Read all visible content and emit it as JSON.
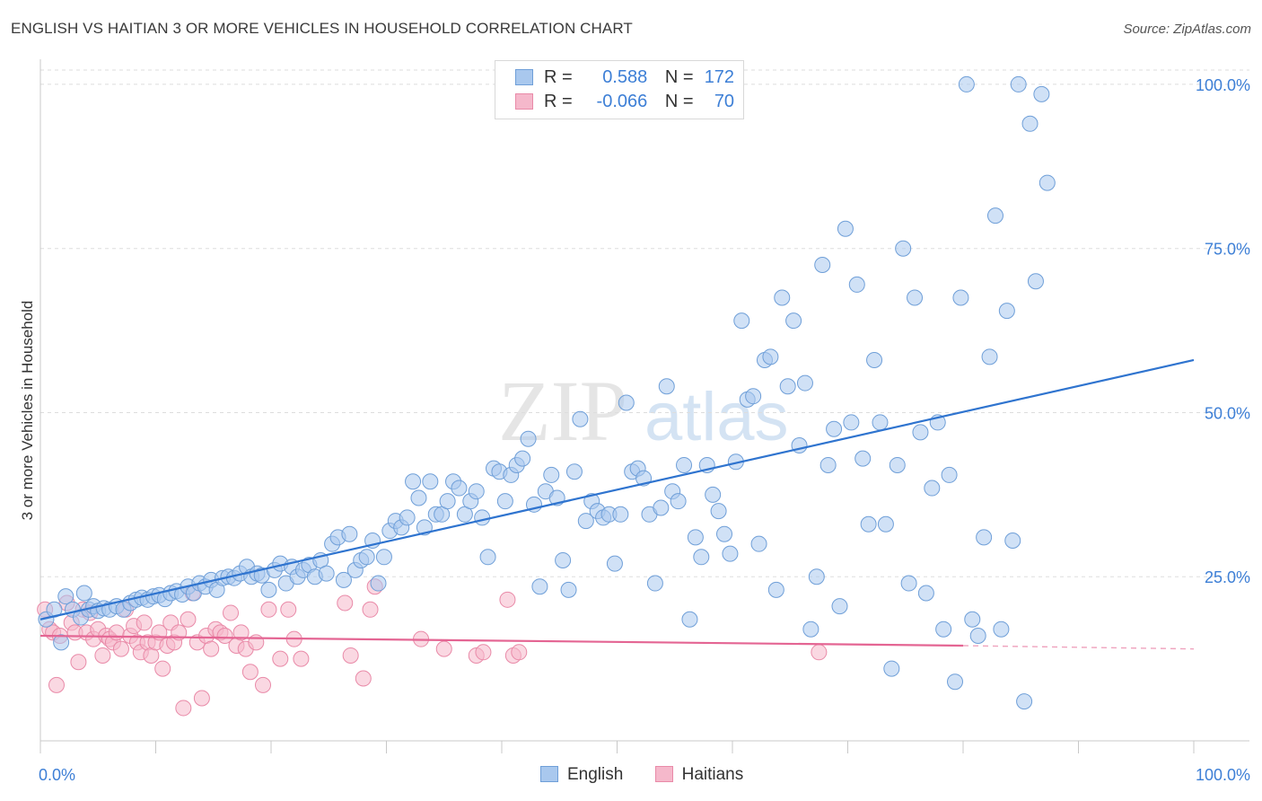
{
  "header": {
    "title": "ENGLISH VS HAITIAN 3 OR MORE VEHICLES IN HOUSEHOLD CORRELATION CHART",
    "source": "Source: ZipAtlas.com"
  },
  "colors": {
    "english_fill": "#a9c8ee",
    "english_stroke": "#6f9fd8",
    "english_line": "#2f74cf",
    "haitian_fill": "#f5b8cb",
    "haitian_stroke": "#e98aa8",
    "haitian_line": "#e46593",
    "axis_label": "#3d7fd6"
  },
  "legend": {
    "r_label": "R =",
    "n_label": "N =",
    "english_r": "0.588",
    "english_n": "172",
    "haitian_r": "-0.066",
    "haitian_n": "70"
  },
  "watermark": {
    "zip": "ZIP",
    "atlas": "atlas"
  },
  "chart_data": {
    "type": "scatter",
    "title": "ENGLISH VS HAITIAN 3 OR MORE VEHICLES IN HOUSEHOLD CORRELATION CHART",
    "xlabel": "",
    "ylabel": "3 or more Vehicles in Household",
    "xlim": [
      0,
      100
    ],
    "ylim": [
      0,
      103
    ],
    "x_tick_labels": [
      "0.0%",
      "100.0%"
    ],
    "y_ticks": [
      25,
      50,
      75,
      100
    ],
    "y_tick_labels": [
      "25.0%",
      "50.0%",
      "75.0%",
      "100.0%"
    ],
    "grid": true,
    "series": [
      {
        "name": "English",
        "r": 0.588,
        "n": 172,
        "trend": {
          "x": [
            0,
            100
          ],
          "y": [
            18.5,
            58
          ]
        },
        "points": [
          [
            0.5,
            18.5
          ],
          [
            1.2,
            20
          ],
          [
            1.8,
            15
          ],
          [
            2.2,
            22
          ],
          [
            2.8,
            20
          ],
          [
            3.5,
            18.8
          ],
          [
            3.8,
            22.5
          ],
          [
            4.2,
            20
          ],
          [
            4.6,
            20.5
          ],
          [
            5,
            19.8
          ],
          [
            5.5,
            20.2
          ],
          [
            6,
            20
          ],
          [
            6.6,
            20.5
          ],
          [
            7.2,
            20
          ],
          [
            7.8,
            21
          ],
          [
            8.3,
            21.5
          ],
          [
            8.8,
            21.8
          ],
          [
            9.3,
            21.5
          ],
          [
            9.8,
            22
          ],
          [
            10.3,
            22.2
          ],
          [
            10.8,
            21.6
          ],
          [
            11.3,
            22.5
          ],
          [
            11.8,
            22.8
          ],
          [
            12.3,
            22.3
          ],
          [
            12.8,
            23.5
          ],
          [
            13.3,
            22.5
          ],
          [
            13.8,
            24
          ],
          [
            14.3,
            23.5
          ],
          [
            14.8,
            24.5
          ],
          [
            15.3,
            23
          ],
          [
            15.8,
            24.8
          ],
          [
            16.3,
            25
          ],
          [
            16.8,
            24.8
          ],
          [
            17.3,
            25.5
          ],
          [
            17.9,
            26.5
          ],
          [
            18.3,
            25
          ],
          [
            18.8,
            25.5
          ],
          [
            19.2,
            25.2
          ],
          [
            19.8,
            23
          ],
          [
            20.3,
            26
          ],
          [
            20.8,
            27
          ],
          [
            21.3,
            24
          ],
          [
            21.8,
            26.5
          ],
          [
            22.3,
            25
          ],
          [
            22.8,
            26
          ],
          [
            23.3,
            26.8
          ],
          [
            23.8,
            25
          ],
          [
            24.3,
            27.5
          ],
          [
            24.8,
            25.5
          ],
          [
            25.3,
            30
          ],
          [
            25.8,
            31
          ],
          [
            26.3,
            24.5
          ],
          [
            26.8,
            31.5
          ],
          [
            27.3,
            26
          ],
          [
            27.8,
            27.5
          ],
          [
            28.3,
            28
          ],
          [
            28.8,
            30.5
          ],
          [
            29.3,
            24
          ],
          [
            29.8,
            28
          ],
          [
            30.3,
            32
          ],
          [
            30.8,
            33.5
          ],
          [
            31.3,
            32.5
          ],
          [
            31.8,
            34
          ],
          [
            32.3,
            39.5
          ],
          [
            32.8,
            37
          ],
          [
            33.3,
            32.5
          ],
          [
            33.8,
            39.5
          ],
          [
            34.3,
            34.5
          ],
          [
            34.8,
            34.5
          ],
          [
            35.3,
            36.5
          ],
          [
            35.8,
            39.5
          ],
          [
            36.3,
            38.5
          ],
          [
            36.8,
            34.5
          ],
          [
            37.3,
            36.5
          ],
          [
            37.8,
            38
          ],
          [
            38.3,
            34
          ],
          [
            38.8,
            28
          ],
          [
            39.3,
            41.5
          ],
          [
            39.8,
            41
          ],
          [
            40.3,
            36.5
          ],
          [
            40.8,
            40.5
          ],
          [
            41.3,
            42
          ],
          [
            41.8,
            43
          ],
          [
            42.3,
            46
          ],
          [
            42.8,
            36
          ],
          [
            43.3,
            23.5
          ],
          [
            43.8,
            38
          ],
          [
            44.3,
            40.5
          ],
          [
            44.8,
            37
          ],
          [
            45.3,
            27.5
          ],
          [
            45.8,
            23
          ],
          [
            46.3,
            41
          ],
          [
            46.8,
            49
          ],
          [
            47.3,
            33.5
          ],
          [
            47.8,
            36.5
          ],
          [
            48.3,
            35
          ],
          [
            48.8,
            34
          ],
          [
            49.3,
            34.5
          ],
          [
            49.8,
            27
          ],
          [
            50.3,
            34.5
          ],
          [
            50.8,
            51.5
          ],
          [
            51.3,
            41
          ],
          [
            51.8,
            41.5
          ],
          [
            52.3,
            40
          ],
          [
            52.8,
            34.5
          ],
          [
            53.3,
            24
          ],
          [
            53.8,
            35.5
          ],
          [
            54.3,
            54
          ],
          [
            54.8,
            38
          ],
          [
            55.3,
            36.5
          ],
          [
            55.8,
            42
          ],
          [
            56.3,
            18.5
          ],
          [
            56.8,
            31
          ],
          [
            57.3,
            28
          ],
          [
            57.8,
            42
          ],
          [
            58.3,
            37.5
          ],
          [
            58.8,
            35
          ],
          [
            59.3,
            31.5
          ],
          [
            59.8,
            28.5
          ],
          [
            60.3,
            42.5
          ],
          [
            60.8,
            64
          ],
          [
            61.3,
            52
          ],
          [
            61.8,
            52.5
          ],
          [
            62.3,
            30
          ],
          [
            62.8,
            58
          ],
          [
            63.3,
            58.5
          ],
          [
            63.8,
            23
          ],
          [
            64.3,
            67.5
          ],
          [
            64.8,
            54
          ],
          [
            65.3,
            64
          ],
          [
            65.8,
            45
          ],
          [
            66.3,
            54.5
          ],
          [
            66.8,
            17
          ],
          [
            67.3,
            25
          ],
          [
            67.8,
            72.5
          ],
          [
            68.3,
            42
          ],
          [
            68.8,
            47.5
          ],
          [
            69.3,
            20.5
          ],
          [
            69.8,
            78
          ],
          [
            70.3,
            48.5
          ],
          [
            70.8,
            69.5
          ],
          [
            71.3,
            43
          ],
          [
            71.8,
            33
          ],
          [
            72.3,
            58
          ],
          [
            72.8,
            48.5
          ],
          [
            73.3,
            33
          ],
          [
            73.8,
            11
          ],
          [
            74.3,
            42
          ],
          [
            74.8,
            75
          ],
          [
            75.3,
            24
          ],
          [
            75.8,
            67.5
          ],
          [
            76.3,
            47
          ],
          [
            76.8,
            22.5
          ],
          [
            77.3,
            38.5
          ],
          [
            77.8,
            48.5
          ],
          [
            78.3,
            17
          ],
          [
            78.8,
            40.5
          ],
          [
            79.3,
            9
          ],
          [
            79.8,
            67.5
          ],
          [
            80.3,
            100
          ],
          [
            80.8,
            18.5
          ],
          [
            81.3,
            16
          ],
          [
            81.8,
            31
          ],
          [
            82.3,
            58.5
          ],
          [
            82.8,
            80
          ],
          [
            83.3,
            17
          ],
          [
            83.8,
            65.5
          ],
          [
            84.3,
            30.5
          ],
          [
            84.8,
            100
          ],
          [
            85.3,
            6
          ],
          [
            85.8,
            94
          ],
          [
            86.3,
            70
          ],
          [
            86.8,
            98.5
          ],
          [
            87.3,
            85
          ]
        ]
      },
      {
        "name": "Haitians",
        "r": -0.066,
        "n": 70,
        "trend": {
          "x": [
            0,
            80
          ],
          "y": [
            16,
            14.5
          ]
        },
        "trend_dashed": {
          "x": [
            80,
            100
          ],
          "y": [
            14.5,
            14
          ]
        },
        "points": [
          [
            0.4,
            20
          ],
          [
            0.8,
            17
          ],
          [
            1.1,
            16.5
          ],
          [
            1.4,
            8.5
          ],
          [
            1.7,
            16
          ],
          [
            2.3,
            21
          ],
          [
            2.7,
            18
          ],
          [
            3,
            16.5
          ],
          [
            3.3,
            12
          ],
          [
            3.7,
            20
          ],
          [
            4,
            16.5
          ],
          [
            4.3,
            19.5
          ],
          [
            4.6,
            15.5
          ],
          [
            5,
            17
          ],
          [
            5.4,
            13
          ],
          [
            5.7,
            16
          ],
          [
            6,
            15.5
          ],
          [
            6.3,
            15
          ],
          [
            6.6,
            16.5
          ],
          [
            7,
            14
          ],
          [
            7.4,
            20
          ],
          [
            7.8,
            16
          ],
          [
            8.1,
            17.5
          ],
          [
            8.4,
            15
          ],
          [
            8.7,
            13.5
          ],
          [
            9,
            18
          ],
          [
            9.3,
            15
          ],
          [
            9.6,
            13
          ],
          [
            10,
            15
          ],
          [
            10.3,
            16.5
          ],
          [
            10.6,
            11
          ],
          [
            11,
            14.5
          ],
          [
            11.3,
            18
          ],
          [
            11.6,
            15
          ],
          [
            12,
            16.5
          ],
          [
            12.4,
            5
          ],
          [
            12.8,
            18.5
          ],
          [
            13.2,
            22.5
          ],
          [
            13.6,
            15
          ],
          [
            14,
            6.5
          ],
          [
            14.4,
            16
          ],
          [
            14.8,
            14
          ],
          [
            15.2,
            17
          ],
          [
            15.6,
            16.5
          ],
          [
            16,
            16
          ],
          [
            16.5,
            19.5
          ],
          [
            17,
            14.5
          ],
          [
            17.4,
            16.5
          ],
          [
            17.8,
            14
          ],
          [
            18.2,
            10.5
          ],
          [
            18.7,
            15
          ],
          [
            19.3,
            8.5
          ],
          [
            19.8,
            20
          ],
          [
            20.8,
            12.5
          ],
          [
            21.5,
            20
          ],
          [
            22,
            15.5
          ],
          [
            22.6,
            12.5
          ],
          [
            26.4,
            21
          ],
          [
            26.9,
            13
          ],
          [
            28,
            9.5
          ],
          [
            28.6,
            20
          ],
          [
            29,
            23.5
          ],
          [
            33,
            15.5
          ],
          [
            35,
            14
          ],
          [
            37.8,
            13
          ],
          [
            38.4,
            13.5
          ],
          [
            40.5,
            21.5
          ],
          [
            41,
            13
          ],
          [
            41.5,
            13.5
          ],
          [
            67.5,
            13.5
          ]
        ]
      }
    ]
  }
}
